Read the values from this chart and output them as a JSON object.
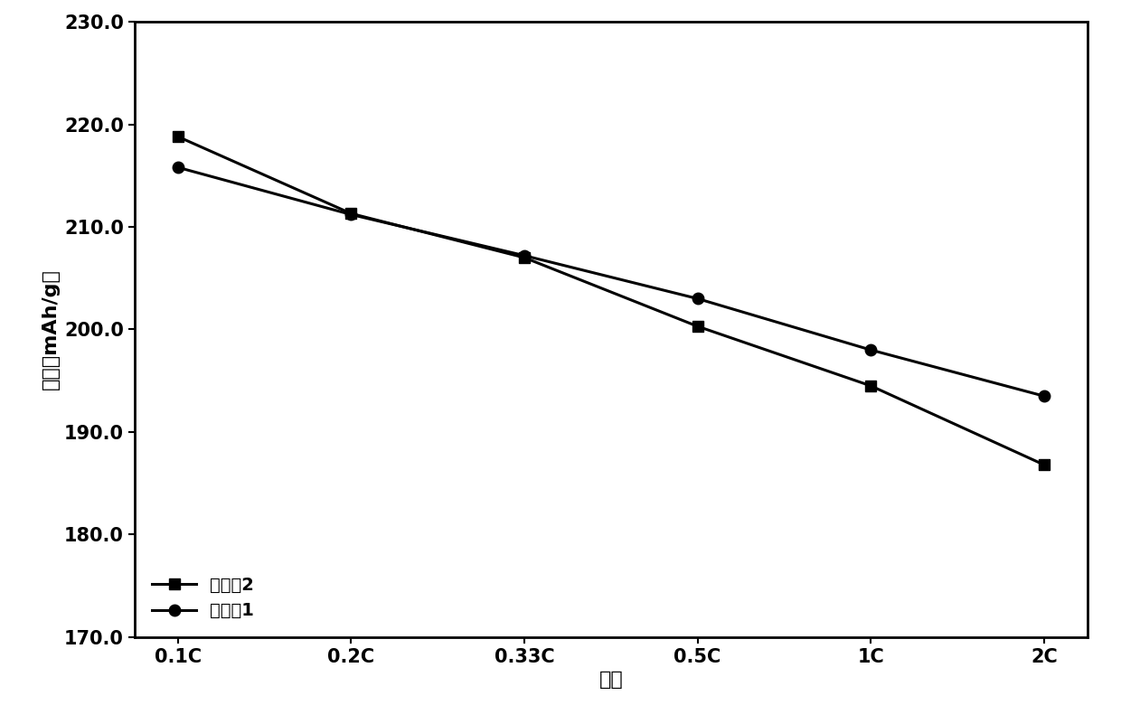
{
  "x_labels": [
    "0.1C",
    "0.2C",
    "0.33C",
    "0.5C",
    "1C",
    "2C"
  ],
  "x_positions": [
    0,
    1,
    2,
    3,
    4,
    5
  ],
  "series1_name": "对比外2",
  "series1_values": [
    218.8,
    211.3,
    207.0,
    200.3,
    194.5,
    186.8
  ],
  "series1_marker": "s",
  "series2_name": "实施外1",
  "series2_values": [
    215.8,
    211.2,
    207.2,
    203.0,
    198.0,
    193.5
  ],
  "series2_marker": "o",
  "ylabel": "容量（mAh/g）",
  "xlabel": "倍率",
  "ylim": [
    170.0,
    230.0
  ],
  "yticks": [
    170.0,
    180.0,
    190.0,
    200.0,
    210.0,
    220.0,
    230.0
  ],
  "line_color": "#000000",
  "background_color": "#ffffff",
  "legend_loc": "lower left",
  "label_fontsize": 16,
  "tick_fontsize": 15,
  "legend_fontsize": 14,
  "line_width": 2.2,
  "marker_size": 9
}
